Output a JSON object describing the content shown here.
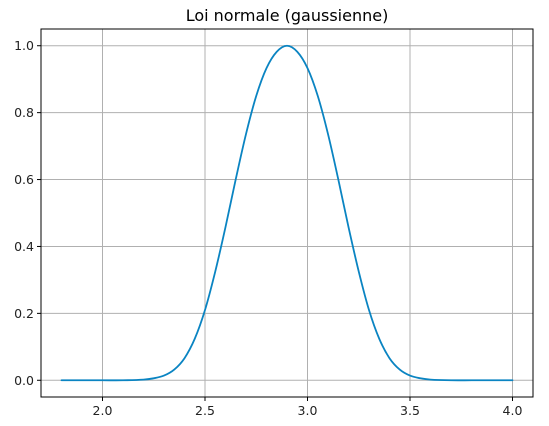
{
  "chart_data": {
    "type": "line",
    "title": "Loi normale (gaussienne)",
    "xlabel": "",
    "ylabel": "",
    "xlim": [
      1.7,
      4.1
    ],
    "ylim": [
      -0.05,
      1.05
    ],
    "xticks": [
      2.0,
      2.5,
      3.0,
      3.5,
      4.0
    ],
    "xtick_labels": [
      "2.0",
      "2.5",
      "3.0",
      "3.5",
      "4.0"
    ],
    "yticks": [
      0.0,
      0.2,
      0.4,
      0.6,
      0.8,
      1.0
    ],
    "ytick_labels": [
      "0.0",
      "0.2",
      "0.4",
      "0.6",
      "0.8",
      "1.0"
    ],
    "grid": true,
    "series": [
      {
        "color": "#0a84c2",
        "x": [
          1.8,
          1.9,
          2.0,
          2.1,
          2.2,
          2.25,
          2.3,
          2.35,
          2.4,
          2.45,
          2.5,
          2.55,
          2.6,
          2.65,
          2.7,
          2.75,
          2.8,
          2.85,
          2.9,
          2.95,
          3.0,
          3.05,
          3.1,
          3.15,
          3.2,
          3.25,
          3.3,
          3.35,
          3.4,
          3.45,
          3.5,
          3.55,
          3.6,
          3.7,
          3.8,
          3.9,
          4.0
        ],
        "y": [
          0.0,
          0.0,
          0.0,
          0.0,
          0.002,
          0.006,
          0.014,
          0.032,
          0.066,
          0.124,
          0.21,
          0.325,
          0.458,
          0.601,
          0.736,
          0.85,
          0.933,
          0.982,
          1.0,
          0.982,
          0.933,
          0.85,
          0.736,
          0.601,
          0.458,
          0.325,
          0.21,
          0.124,
          0.066,
          0.032,
          0.014,
          0.006,
          0.002,
          0.0,
          0.0,
          0.0,
          0.0
        ]
      }
    ]
  }
}
